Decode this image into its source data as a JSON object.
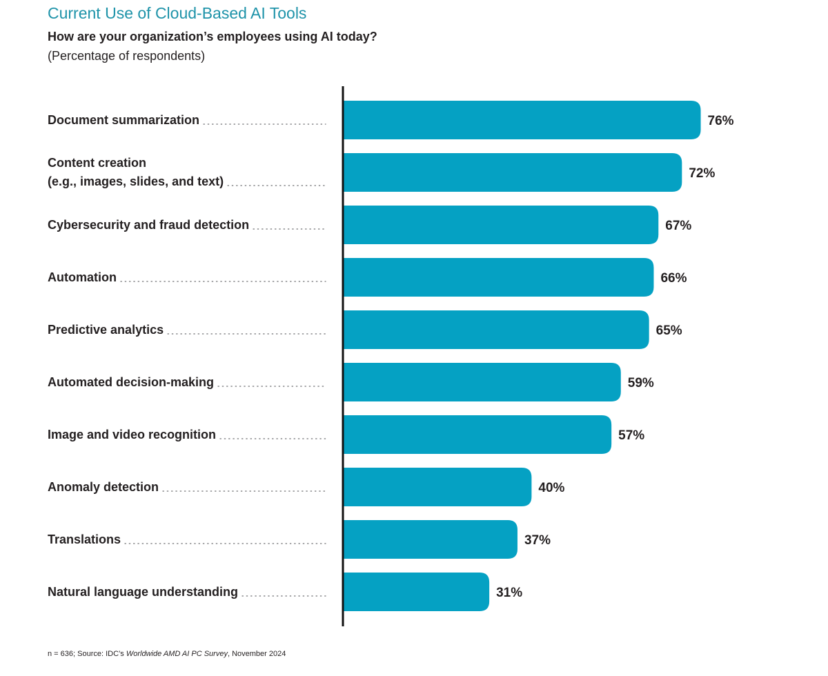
{
  "header": {
    "title": "Current Use of Cloud-Based AI Tools",
    "question": "How are your organization’s employees using AI today?",
    "unit_note": "(Percentage of respondents)"
  },
  "colors": {
    "bar": "#05a1c3",
    "title": "#1e93a9",
    "axis": "#111111",
    "text": "#231f20"
  },
  "chart_data": {
    "type": "bar",
    "orientation": "horizontal",
    "title": "Current Use of Cloud-Based AI Tools",
    "subtitle": "How are your organization’s employees using AI today?",
    "xlabel": "",
    "ylabel": "",
    "unit": "%",
    "xlim": [
      0,
      80
    ],
    "grid": false,
    "legend": "none",
    "categories": [
      [
        "Document summarization"
      ],
      [
        "Content creation",
        "(e.g., images, slides, and text)"
      ],
      [
        "Cybersecurity and fraud detection"
      ],
      [
        "Automation"
      ],
      [
        "Predictive analytics"
      ],
      [
        "Automated decision-making"
      ],
      [
        "Image and video recognition"
      ],
      [
        "Anomaly detection"
      ],
      [
        "Translations"
      ],
      [
        "Natural language understanding"
      ]
    ],
    "values": [
      76,
      72,
      67,
      66,
      65,
      59,
      57,
      40,
      37,
      31
    ]
  },
  "footer": {
    "source_prefix": "n = 636; Source: IDC’s ",
    "source_title": "Worldwide AMD AI PC Survey",
    "source_suffix": ", November 2024"
  }
}
